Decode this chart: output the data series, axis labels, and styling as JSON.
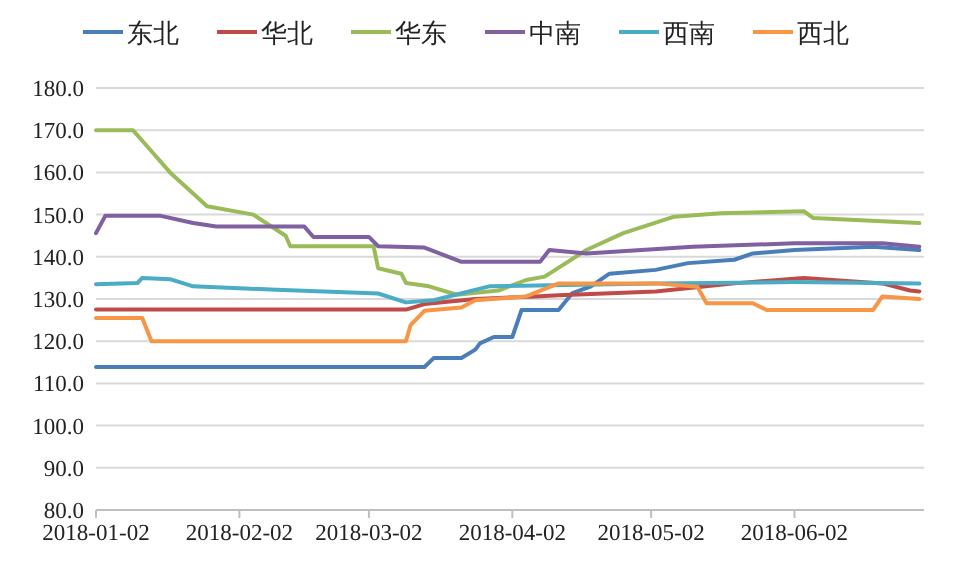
{
  "chart_data": {
    "type": "line",
    "legend": "top",
    "grid": "y",
    "xlim": [
      "2018-01-02",
      "2018-06-30"
    ],
    "xticks": [
      "2018-01-02",
      "2018-02-02",
      "2018-03-02",
      "2018-04-02",
      "2018-05-02",
      "2018-06-02"
    ],
    "ylim": [
      80,
      180
    ],
    "yticks": [
      {
        "value": 80,
        "label": "80.0"
      },
      {
        "value": 90,
        "label": "90.0"
      },
      {
        "value": 100,
        "label": "100.0"
      },
      {
        "value": 110,
        "label": "110.0"
      },
      {
        "value": 120,
        "label": "120.0"
      },
      {
        "value": 130,
        "label": "130.0"
      },
      {
        "value": 140,
        "label": "140.0"
      },
      {
        "value": 150,
        "label": "150.0"
      },
      {
        "value": 160,
        "label": "160.0"
      },
      {
        "value": 170,
        "label": "170.0"
      },
      {
        "value": 180,
        "label": "180.0"
      }
    ],
    "series": [
      {
        "name": "东北",
        "color": "#4a7ebb",
        "x": [
          "2018-01-02",
          "2018-03-14",
          "2018-03-16",
          "2018-03-22",
          "2018-03-25",
          "2018-03-26",
          "2018-03-29",
          "2018-04-02",
          "2018-04-04",
          "2018-04-12",
          "2018-04-15",
          "2018-04-19",
          "2018-04-23",
          "2018-05-03",
          "2018-05-10",
          "2018-05-20",
          "2018-05-24",
          "2018-06-02",
          "2018-06-19",
          "2018-06-29"
        ],
        "values": [
          113.9,
          113.9,
          116,
          116,
          118,
          119.5,
          121,
          121,
          127.4,
          127.4,
          131.4,
          133,
          136,
          136.9,
          138.5,
          139.3,
          140.8,
          141.6,
          142.4,
          141.6
        ]
      },
      {
        "name": "华北",
        "color": "#be4b48",
        "x": [
          "2018-01-02",
          "2018-03-10",
          "2018-03-14",
          "2018-03-25",
          "2018-04-07",
          "2018-04-12",
          "2018-05-03",
          "2018-05-20",
          "2018-06-04",
          "2018-06-21",
          "2018-06-27",
          "2018-06-29"
        ],
        "values": [
          127.5,
          127.5,
          128.8,
          130,
          130.6,
          130.9,
          131.8,
          133.7,
          135,
          133.7,
          132,
          131.8
        ]
      },
      {
        "name": "华东",
        "color": "#9bbb59",
        "x": [
          "2018-01-02",
          "2018-01-10",
          "2018-01-14",
          "2018-01-18",
          "2018-01-23",
          "2018-01-26",
          "2018-02-05",
          "2018-02-12",
          "2018-02-13",
          "2018-03-03",
          "2018-03-04",
          "2018-03-09",
          "2018-03-10",
          "2018-03-15",
          "2018-03-21",
          "2018-03-30",
          "2018-04-05",
          "2018-04-09",
          "2018-04-18",
          "2018-04-26",
          "2018-05-07",
          "2018-05-17",
          "2018-06-04",
          "2018-06-06",
          "2018-06-29"
        ],
        "values": [
          170,
          170,
          165,
          160,
          155,
          152,
          150,
          145,
          142.5,
          142.5,
          137.3,
          136,
          133.8,
          133,
          131,
          132,
          134.5,
          135.3,
          141.6,
          145.6,
          149.5,
          150.3,
          150.8,
          149.2,
          148
        ]
      },
      {
        "name": "中南",
        "color": "#7f60a0",
        "x": [
          "2018-01-02",
          "2018-01-04",
          "2018-01-16",
          "2018-01-23",
          "2018-01-28",
          "2018-02-16",
          "2018-02-18",
          "2018-03-02",
          "2018-03-04",
          "2018-03-14",
          "2018-03-22",
          "2018-04-08",
          "2018-04-10",
          "2018-04-18",
          "2018-05-11",
          "2018-06-02",
          "2018-06-21",
          "2018-06-29"
        ],
        "values": [
          145.6,
          149.7,
          149.7,
          148,
          147.2,
          147.2,
          144.7,
          144.7,
          142.5,
          142.2,
          138.8,
          138.8,
          141.6,
          140.8,
          142.4,
          143.2,
          143.2,
          142.4
        ]
      },
      {
        "name": "西南",
        "color": "#4bacc6",
        "x": [
          "2018-01-02",
          "2018-01-11",
          "2018-01-12",
          "2018-01-18",
          "2018-01-23",
          "2018-02-10",
          "2018-03-04",
          "2018-03-10",
          "2018-03-16",
          "2018-03-28",
          "2018-05-03",
          "2018-06-02",
          "2018-06-29"
        ],
        "values": [
          133.5,
          133.8,
          135,
          134.7,
          133,
          132.2,
          131.3,
          129.2,
          129.7,
          133,
          133.7,
          134,
          133.7
        ]
      },
      {
        "name": "西北",
        "color": "#f79646",
        "x": [
          "2018-01-02",
          "2018-01-12",
          "2018-01-14",
          "2018-03-10",
          "2018-03-11",
          "2018-03-14",
          "2018-03-22",
          "2018-03-25",
          "2018-04-05",
          "2018-04-12",
          "2018-05-03",
          "2018-05-12",
          "2018-05-14",
          "2018-05-24",
          "2018-05-27",
          "2018-06-19",
          "2018-06-21",
          "2018-06-29"
        ],
        "values": [
          125.5,
          125.5,
          120,
          120,
          123.8,
          127.2,
          128,
          129.7,
          130.6,
          133.7,
          133.7,
          132.9,
          129,
          129,
          127.4,
          127.4,
          130.6,
          130
        ]
      }
    ]
  }
}
